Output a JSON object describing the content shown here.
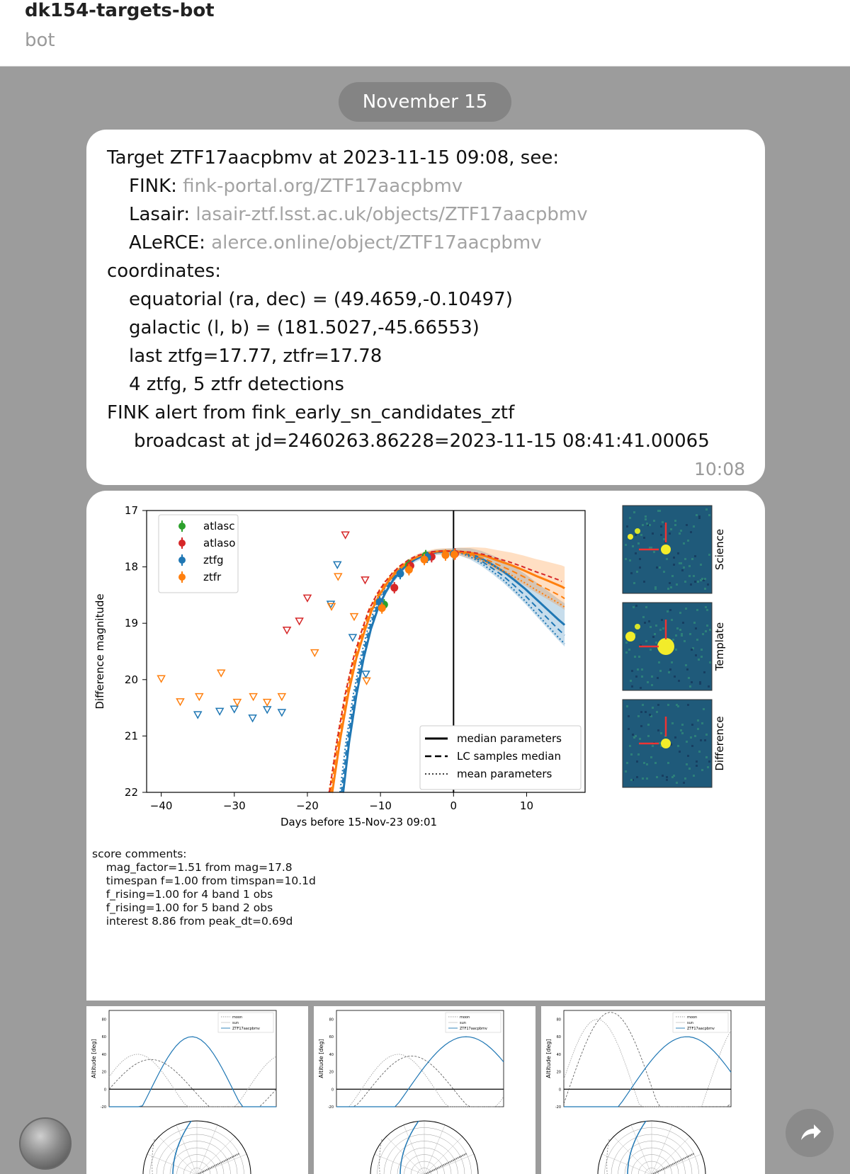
{
  "header": {
    "title": "dk154-targets-bot",
    "subtitle": "bot"
  },
  "date_pill": "November 15",
  "message": {
    "lines": [
      "Target ZTF17aacpbmv at 2023-11-15 09:08, see:",
      "FINK: ",
      "Lasair: ",
      "ALeRCE: ",
      "coordinates:",
      "equatorial (ra, dec) = (49.4659,-0.10497)",
      "galactic (l, b) = (181.5027,-45.66553)",
      "last ztfg=17.77, ztfr=17.78",
      "4 ztfg, 5 ztfr detections",
      "FINK alert from fink_early_sn_candidates_ztf",
      "broadcast at jd=2460263.86228=2023-11-15 08:41:41.00065"
    ],
    "links": {
      "fink": "fink-portal.org/ZTF17aacpbmv",
      "lasair": "lasair-ztf.lsst.ac.uk/objects/ZTF17aacpbmv",
      "alerce": "alerce.online/object/ZTF17aacpbmv"
    },
    "time": "10:08"
  },
  "score_comments": "score comments:\n    mag_factor=1.51 from mag=17.8\n    timespan f=1.00 from timspan=10.1d\n    f_rising=1.00 for 4 band 1 obs\n    f_rising=1.00 for 5 band 2 obs\n    interest 8.86 from peak_dt=0.69d",
  "colors": {
    "atlasc": "#2ca02c",
    "atlaso": "#d62728",
    "ztfg": "#1f77b4",
    "ztfr": "#ff7f0e",
    "chat_bg": "#9c9c9c",
    "link": "#a3a3a3"
  },
  "cutouts": [
    "Science",
    "Template",
    "Difference"
  ],
  "visibility_panels": [
    {
      "legend": [
        "moon",
        "sun",
        "ZTF17aacpbmv"
      ],
      "ylabel": "Altitude [deg]"
    },
    {
      "legend": [
        "moon",
        "sun",
        "ZTF17aacpbmv"
      ],
      "ylabel": "Altitude [deg]"
    },
    {
      "legend": [
        "moon",
        "sun",
        "ZTF17aacpbmv"
      ],
      "ylabel": "Altitude [deg]"
    }
  ],
  "icons": {
    "avatar": "bot-avatar",
    "share": "share-arrow-icon"
  },
  "chart_data": {
    "type": "scatter",
    "title": "",
    "xlabel": "Days before 15-Nov-23 09:01",
    "ylabel": "Difference magnitude",
    "xlim": [
      -42,
      18
    ],
    "ylim": [
      22,
      17
    ],
    "xticks": [
      -40,
      -30,
      -20,
      -10,
      0,
      10
    ],
    "xtick_labels": [
      "−40",
      "−30",
      "−20",
      "−10",
      "0",
      "10"
    ],
    "yticks": [
      17,
      18,
      19,
      20,
      21,
      22
    ],
    "legend": [
      "atlasc",
      "atlaso",
      "ztfg",
      "ztfr"
    ],
    "line_legend": [
      "median parameters",
      "LC samples median",
      "mean parameters"
    ],
    "vline_x": 0,
    "series": [
      {
        "name": "atlasc",
        "kind": "detection",
        "x": [
          -9.5,
          -6.1,
          -3.8
        ],
        "y": [
          18.67,
          17.97,
          17.8
        ]
      },
      {
        "name": "atlaso",
        "kind": "detection",
        "x": [
          -8.1,
          -5.9,
          -3.0,
          0.2
        ],
        "y": [
          18.37,
          17.98,
          17.82,
          17.77
        ]
      },
      {
        "name": "ztfg",
        "kind": "detection",
        "x": [
          -10.1,
          -7.3,
          -3.6,
          0.0
        ],
        "y": [
          18.62,
          18.12,
          17.83,
          17.77
        ]
      },
      {
        "name": "ztfr",
        "kind": "detection",
        "x": [
          -9.8,
          -6.1,
          -4.0,
          -1.1,
          0.1
        ],
        "y": [
          18.73,
          18.05,
          17.87,
          17.79,
          17.78
        ]
      },
      {
        "name": "atlaso",
        "kind": "limit",
        "x": [
          -22.8,
          -21.1,
          -20.0,
          -14.8,
          -12.1
        ],
        "y": [
          19.12,
          18.96,
          18.55,
          17.43,
          18.23
        ]
      },
      {
        "name": "ztfg",
        "kind": "limit",
        "x": [
          -35.0,
          -32.0,
          -30.0,
          -27.5,
          -25.5,
          -23.5,
          -16.8,
          -15.9,
          -13.8,
          -12.0
        ],
        "y": [
          20.62,
          20.56,
          20.52,
          20.68,
          20.53,
          20.58,
          18.66,
          17.96,
          19.25,
          19.9
        ]
      },
      {
        "name": "ztfr",
        "kind": "limit",
        "x": [
          -40.0,
          -37.4,
          -34.8,
          -31.8,
          -29.6,
          -27.4,
          -25.5,
          -23.5,
          -19.0,
          -16.7,
          -15.8,
          -13.6,
          -11.9
        ],
        "y": [
          19.98,
          20.39,
          20.3,
          19.88,
          20.4,
          20.3,
          20.4,
          20.3,
          19.52,
          18.7,
          18.17,
          18.88,
          20.02
        ]
      }
    ],
    "model_curves": [
      {
        "band": "ztfg",
        "style": "solid",
        "x": [
          -15.1,
          -14.3,
          -13.3,
          -12.3,
          -11.3,
          -10.3,
          -9.3,
          -8.3,
          -7.3,
          -6.3,
          -5.3,
          -4.3,
          -3.3,
          -2.3,
          -1.3,
          -0.3,
          0.8,
          2.3,
          3.8,
          5.3,
          6.8,
          8.3,
          9.8,
          11.3,
          12.8,
          14.3,
          15.2
        ],
        "y": [
          22.0,
          21.12,
          20.28,
          19.62,
          19.1,
          18.72,
          18.45,
          18.24,
          18.08,
          17.96,
          17.87,
          17.81,
          17.77,
          17.74,
          17.73,
          17.72,
          17.73,
          17.77,
          17.85,
          17.96,
          18.08,
          18.23,
          18.39,
          18.57,
          18.75,
          18.93,
          19.03
        ]
      },
      {
        "band": "ztfr",
        "style": "solid",
        "x": [
          -16.6,
          -15.5,
          -14.4,
          -13.3,
          -12.2,
          -11.2,
          -10.1,
          -9.0,
          -7.9,
          -6.8,
          -5.7,
          -4.6,
          -3.5,
          -2.5,
          -1.4,
          -0.3,
          1.0,
          2.7,
          4.4,
          6.1,
          7.9,
          9.6,
          11.3,
          13.0,
          14.8,
          15.2
        ],
        "y": [
          22.0,
          21.05,
          20.25,
          19.62,
          19.15,
          18.77,
          18.49,
          18.27,
          18.1,
          17.97,
          17.87,
          17.8,
          17.76,
          17.73,
          17.72,
          17.72,
          17.73,
          17.76,
          17.81,
          17.89,
          17.97,
          18.06,
          18.16,
          18.25,
          18.35,
          18.38
        ]
      }
    ]
  }
}
